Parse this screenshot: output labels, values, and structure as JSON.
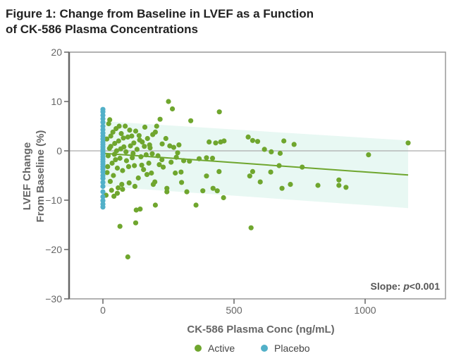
{
  "chart_data": {
    "type": "scatter",
    "title_lines": [
      "Figure 1: Change from Baseline in LVEF as a Function",
      "of CK-586 Plasma Concentrations"
    ],
    "xlabel": "CK-586 Plasma Conc (ng/mL)",
    "ylabel_lines": [
      "LVEF Change",
      "From Baseline (%)"
    ],
    "xlim": [
      -130,
      1300
    ],
    "ylim": [
      -30,
      20
    ],
    "xticks": [
      0,
      500,
      1000
    ],
    "yticks": [
      20,
      10,
      0,
      -10,
      -20,
      -30
    ],
    "ytick_labels": [
      "20",
      "10",
      "0",
      "−10",
      "−20",
      "−30"
    ],
    "reference_line_y": 0,
    "annotation": {
      "prefix": "Slope: ",
      "italic": "p",
      "suffix": "<0.001"
    },
    "legend_position": "bottom",
    "regression": {
      "x": [
        0,
        1164
      ],
      "y": [
        -0.5,
        -4.9
      ],
      "ci_upper": [
        6.0,
        2.1
      ],
      "ci_lower": [
        -7.2,
        -11.6
      ]
    },
    "colors": {
      "active": "#6fa62e",
      "placebo": "#52b0c8",
      "band": "#e8f8f3",
      "line": "#6fa62e"
    },
    "series": [
      {
        "name": "Active",
        "points": [
          [
            1164,
            1.6
          ],
          [
            1013,
            -0.8
          ],
          [
            729,
            1.3
          ],
          [
            690,
            2.0
          ],
          [
            676,
            -0.5
          ],
          [
            642,
            -0.2
          ],
          [
            616,
            0.3
          ],
          [
            590,
            1.9
          ],
          [
            554,
            2.8
          ],
          [
            571,
            2.1
          ],
          [
            571,
            -4.2
          ],
          [
            560,
            -5.1
          ],
          [
            600,
            -6.3
          ],
          [
            640,
            -4.3
          ],
          [
            672,
            -3.0
          ],
          [
            760,
            -3.3
          ],
          [
            683,
            -7.6
          ],
          [
            715,
            -6.8
          ],
          [
            820,
            -7.0
          ],
          [
            900,
            -5.9
          ],
          [
            900,
            -7.0
          ],
          [
            927,
            -7.4
          ],
          [
            565,
            -15.6
          ],
          [
            444,
            7.9
          ],
          [
            449,
            1.8
          ],
          [
            462,
            2.0
          ],
          [
            430,
            1.6
          ],
          [
            405,
            1.8
          ],
          [
            395,
            -1.4
          ],
          [
            418,
            -1.5
          ],
          [
            367,
            -1.6
          ],
          [
            395,
            -5.1
          ],
          [
            420,
            -7.6
          ],
          [
            436,
            -8.1
          ],
          [
            381,
            -8.1
          ],
          [
            460,
            -9.5
          ],
          [
            330,
            -2.1
          ],
          [
            308,
            -2.0
          ],
          [
            300,
            -6.4
          ],
          [
            320,
            -8.3
          ],
          [
            355,
            -11.0
          ],
          [
            298,
            -4.3
          ],
          [
            443,
            -4.2
          ],
          [
            250,
            10.0
          ],
          [
            265,
            8.5
          ],
          [
            335,
            6.1
          ],
          [
            218,
            6.4
          ],
          [
            205,
            5.0
          ],
          [
            226,
            1.4
          ],
          [
            240,
            2.5
          ],
          [
            200,
            3.8
          ],
          [
            244,
            -7.6
          ],
          [
            244,
            -8.3
          ],
          [
            276,
            -4.5
          ],
          [
            198,
            -6.3
          ],
          [
            192,
            -6.8
          ],
          [
            200,
            -11.0
          ],
          [
            127,
            -12.0
          ],
          [
            142,
            -11.8
          ],
          [
            125,
            -14.6
          ],
          [
            65,
            -15.3
          ],
          [
            95,
            -21.5
          ],
          [
            20,
            -1.0
          ],
          [
            25,
            0.5
          ],
          [
            30,
            3.0
          ],
          [
            35,
            -2.5
          ],
          [
            40,
            -5.0
          ],
          [
            45,
            1.5
          ],
          [
            50,
            4.5
          ],
          [
            55,
            -3.5
          ],
          [
            60,
            2.0
          ],
          [
            65,
            -1.5
          ],
          [
            70,
            3.5
          ],
          [
            75,
            -4.0
          ],
          [
            80,
            0.8
          ],
          [
            85,
            5.0
          ],
          [
            90,
            -2.0
          ],
          [
            95,
            2.8
          ],
          [
            100,
            -6.5
          ],
          [
            105,
            1.0
          ],
          [
            110,
            3.0
          ],
          [
            115,
            -0.5
          ],
          [
            120,
            -3.0
          ],
          [
            125,
            4.0
          ],
          [
            130,
            0.3
          ],
          [
            135,
            -5.5
          ],
          [
            140,
            2.2
          ],
          [
            145,
            -1.2
          ],
          [
            150,
            1.8
          ],
          [
            155,
            -3.8
          ],
          [
            160,
            4.8
          ],
          [
            165,
            -0.8
          ],
          [
            170,
            2.5
          ],
          [
            175,
            -2.5
          ],
          [
            180,
            0.6
          ],
          [
            185,
            -4.5
          ],
          [
            190,
            3.3
          ],
          [
            210,
            -1.0
          ],
          [
            215,
            -2.8
          ],
          [
            225,
            -1.8
          ],
          [
            230,
            -3.3
          ],
          [
            255,
            1.0
          ],
          [
            260,
            -2.3
          ],
          [
            270,
            0.7
          ],
          [
            280,
            -1.3
          ],
          [
            285,
            -0.4
          ],
          [
            290,
            1.2
          ],
          [
            15,
            2.4
          ],
          [
            18,
            -3.2
          ],
          [
            22,
            5.5
          ],
          [
            28,
            -6.2
          ],
          [
            33,
            -8.0
          ],
          [
            38,
            3.8
          ],
          [
            48,
            -1.8
          ],
          [
            52,
            0.0
          ],
          [
            58,
            -7.5
          ],
          [
            62,
            5.0
          ],
          [
            68,
            0.4
          ],
          [
            72,
            -6.8
          ],
          [
            78,
            2.6
          ],
          [
            88,
            -0.2
          ],
          [
            98,
            -3.2
          ],
          [
            102,
            4.2
          ],
          [
            112,
            -1.4
          ],
          [
            118,
            1.6
          ],
          [
            122,
            -7.2
          ],
          [
            138,
            3.1
          ],
          [
            148,
            -2.9
          ],
          [
            158,
            0.9
          ],
          [
            168,
            -4.8
          ],
          [
            178,
            1.2
          ],
          [
            188,
            -0.6
          ],
          [
            12,
            -9.0
          ],
          [
            16,
            -4.4
          ],
          [
            26,
            6.3
          ],
          [
            42,
            -9.2
          ],
          [
            55,
            -8.6
          ],
          [
            75,
            -7.8
          ],
          [
            30,
            0.9
          ],
          [
            44,
            -0.7
          ]
        ]
      },
      {
        "name": "Placebo",
        "points": [
          [
            0,
            8.4
          ],
          [
            0,
            7.9
          ],
          [
            0,
            7.2
          ],
          [
            0,
            6.5
          ],
          [
            0,
            5.8
          ],
          [
            0,
            5.0
          ],
          [
            0,
            4.3
          ],
          [
            0,
            3.6
          ],
          [
            0,
            3.0
          ],
          [
            0,
            2.4
          ],
          [
            0,
            1.8
          ],
          [
            0,
            1.3
          ],
          [
            0,
            0.8
          ],
          [
            0,
            0.3
          ],
          [
            0,
            -0.2
          ],
          [
            0,
            -0.7
          ],
          [
            0,
            -1.2
          ],
          [
            0,
            -1.7
          ],
          [
            0,
            -2.2
          ],
          [
            0,
            -2.7
          ],
          [
            0,
            -3.2
          ],
          [
            0,
            -3.7
          ],
          [
            0,
            -4.3
          ],
          [
            0,
            -5.0
          ],
          [
            0,
            -5.6
          ],
          [
            0,
            -6.4
          ],
          [
            0,
            -7.2
          ],
          [
            0,
            -8.3
          ],
          [
            0,
            -9.3
          ],
          [
            0,
            -10.1
          ],
          [
            0,
            -10.8
          ],
          [
            0,
            -11.4
          ]
        ]
      }
    ]
  }
}
